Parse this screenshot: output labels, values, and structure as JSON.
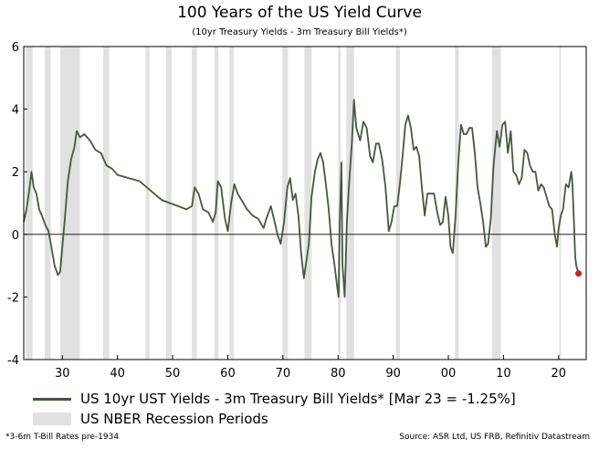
{
  "chart_data": {
    "type": "line",
    "title": "100 Years of the US Yield Curve",
    "subtitle": "(10yr Treasury Yields - 3m Treasury Bill Yields*)",
    "xlabel": "",
    "ylabel": "",
    "xlim": [
      1923,
      2025
    ],
    "ylim": [
      -4,
      6
    ],
    "yticks": [
      6,
      4,
      2,
      0,
      -2,
      -4
    ],
    "xticks": [
      {
        "value": 1930,
        "label": "30"
      },
      {
        "value": 1940,
        "label": "40"
      },
      {
        "value": 1950,
        "label": "50"
      },
      {
        "value": 1960,
        "label": "60"
      },
      {
        "value": 1970,
        "label": "70"
      },
      {
        "value": 1980,
        "label": "80"
      },
      {
        "value": 1990,
        "label": "90"
      },
      {
        "value": 2000,
        "label": "00"
      },
      {
        "value": 2010,
        "label": "10"
      },
      {
        "value": 2020,
        "label": "20"
      }
    ],
    "recessions": [
      [
        1923.4,
        1924.6
      ],
      [
        1926.8,
        1927.9
      ],
      [
        1929.6,
        1933.2
      ],
      [
        1937.4,
        1938.5
      ],
      [
        1945.1,
        1945.8
      ],
      [
        1948.8,
        1949.8
      ],
      [
        1953.5,
        1954.4
      ],
      [
        1957.6,
        1958.3
      ],
      [
        1960.3,
        1961.1
      ],
      [
        1969.9,
        1970.9
      ],
      [
        1973.9,
        1975.2
      ],
      [
        1980.0,
        1980.5
      ],
      [
        1981.5,
        1982.9
      ],
      [
        1990.5,
        1991.2
      ],
      [
        2001.2,
        2001.9
      ],
      [
        2007.9,
        2009.5
      ],
      [
        2020.1,
        2020.3
      ]
    ],
    "series": [
      {
        "name": "US 10yr UST Yields - 3m Treasury Bill Yields* [Mar 23 = -1.25%]",
        "color": "#475641",
        "points": [
          [
            1923.0,
            0.4
          ],
          [
            1923.5,
            0.8
          ],
          [
            1924.0,
            1.4
          ],
          [
            1924.4,
            2.0
          ],
          [
            1924.8,
            1.5
          ],
          [
            1925.3,
            1.3
          ],
          [
            1925.8,
            0.8
          ],
          [
            1926.3,
            0.6
          ],
          [
            1926.9,
            0.3
          ],
          [
            1927.5,
            0.1
          ],
          [
            1928.0,
            -0.4
          ],
          [
            1928.6,
            -1.0
          ],
          [
            1929.2,
            -1.3
          ],
          [
            1929.6,
            -1.2
          ],
          [
            1930.0,
            -0.4
          ],
          [
            1930.5,
            0.6
          ],
          [
            1931.0,
            1.7
          ],
          [
            1931.6,
            2.4
          ],
          [
            1932.2,
            2.8
          ],
          [
            1932.6,
            3.3
          ],
          [
            1933.2,
            3.1
          ],
          [
            1934.0,
            3.2
          ],
          [
            1935.0,
            3.0
          ],
          [
            1936.0,
            2.7
          ],
          [
            1937.0,
            2.6
          ],
          [
            1938.0,
            2.2
          ],
          [
            1939.0,
            2.1
          ],
          [
            1940.0,
            1.9
          ],
          [
            1942.0,
            1.8
          ],
          [
            1944.0,
            1.7
          ],
          [
            1946.0,
            1.4
          ],
          [
            1948.0,
            1.1
          ],
          [
            1949.5,
            1.0
          ],
          [
            1951.0,
            0.9
          ],
          [
            1952.5,
            0.8
          ],
          [
            1953.5,
            0.9
          ],
          [
            1954.0,
            1.5
          ],
          [
            1954.7,
            1.3
          ],
          [
            1955.5,
            0.8
          ],
          [
            1956.5,
            0.7
          ],
          [
            1957.3,
            0.4
          ],
          [
            1957.8,
            0.7
          ],
          [
            1958.2,
            1.7
          ],
          [
            1958.8,
            1.5
          ],
          [
            1959.5,
            0.5
          ],
          [
            1960.0,
            0.1
          ],
          [
            1960.6,
            1.0
          ],
          [
            1961.2,
            1.6
          ],
          [
            1961.8,
            1.3
          ],
          [
            1962.5,
            1.1
          ],
          [
            1963.5,
            0.8
          ],
          [
            1964.5,
            0.6
          ],
          [
            1965.5,
            0.5
          ],
          [
            1966.5,
            0.2
          ],
          [
            1967.0,
            0.5
          ],
          [
            1967.8,
            0.9
          ],
          [
            1968.5,
            0.4
          ],
          [
            1969.0,
            0.0
          ],
          [
            1969.6,
            -0.3
          ],
          [
            1970.2,
            0.4
          ],
          [
            1970.8,
            1.5
          ],
          [
            1971.3,
            1.8
          ],
          [
            1971.8,
            1.1
          ],
          [
            1972.3,
            1.3
          ],
          [
            1972.8,
            0.6
          ],
          [
            1973.3,
            -0.6
          ],
          [
            1973.8,
            -1.4
          ],
          [
            1974.3,
            -0.8
          ],
          [
            1974.7,
            -0.3
          ],
          [
            1975.2,
            1.2
          ],
          [
            1975.8,
            2.0
          ],
          [
            1976.3,
            2.4
          ],
          [
            1976.8,
            2.6
          ],
          [
            1977.3,
            2.3
          ],
          [
            1977.8,
            1.6
          ],
          [
            1978.3,
            0.8
          ],
          [
            1978.8,
            -0.3
          ],
          [
            1979.3,
            -0.9
          ],
          [
            1979.8,
            -1.6
          ],
          [
            1980.1,
            -2.0
          ],
          [
            1980.3,
            0.3
          ],
          [
            1980.6,
            2.3
          ],
          [
            1980.8,
            -1.0
          ],
          [
            1981.2,
            -2.0
          ],
          [
            1981.6,
            0.4
          ],
          [
            1982.0,
            1.6
          ],
          [
            1982.5,
            2.9
          ],
          [
            1982.9,
            4.3
          ],
          [
            1983.3,
            3.4
          ],
          [
            1984.0,
            3.0
          ],
          [
            1984.6,
            3.6
          ],
          [
            1985.2,
            3.4
          ],
          [
            1985.8,
            2.5
          ],
          [
            1986.3,
            2.3
          ],
          [
            1986.9,
            2.9
          ],
          [
            1987.4,
            2.9
          ],
          [
            1988.0,
            2.4
          ],
          [
            1988.6,
            1.5
          ],
          [
            1989.2,
            0.1
          ],
          [
            1989.7,
            0.4
          ],
          [
            1990.2,
            0.9
          ],
          [
            1990.7,
            0.9
          ],
          [
            1991.2,
            1.6
          ],
          [
            1991.7,
            2.5
          ],
          [
            1992.2,
            3.5
          ],
          [
            1992.7,
            3.8
          ],
          [
            1993.2,
            3.4
          ],
          [
            1993.7,
            2.7
          ],
          [
            1994.2,
            2.8
          ],
          [
            1994.7,
            2.5
          ],
          [
            1995.2,
            1.5
          ],
          [
            1995.7,
            0.6
          ],
          [
            1996.2,
            1.3
          ],
          [
            1996.8,
            1.3
          ],
          [
            1997.4,
            1.3
          ],
          [
            1998.0,
            0.7
          ],
          [
            1998.5,
            0.3
          ],
          [
            1999.0,
            0.4
          ],
          [
            1999.5,
            1.2
          ],
          [
            2000.0,
            0.6
          ],
          [
            2000.4,
            -0.4
          ],
          [
            2000.8,
            -0.6
          ],
          [
            2001.3,
            0.6
          ],
          [
            2001.8,
            2.3
          ],
          [
            2002.3,
            3.5
          ],
          [
            2002.8,
            3.2
          ],
          [
            2003.3,
            3.2
          ],
          [
            2003.8,
            3.4
          ],
          [
            2004.3,
            3.4
          ],
          [
            2004.8,
            2.6
          ],
          [
            2005.3,
            1.5
          ],
          [
            2005.8,
            1.0
          ],
          [
            2006.3,
            0.4
          ],
          [
            2006.8,
            -0.4
          ],
          [
            2007.2,
            -0.3
          ],
          [
            2007.7,
            0.5
          ],
          [
            2008.2,
            2.2
          ],
          [
            2008.8,
            3.3
          ],
          [
            2009.3,
            2.8
          ],
          [
            2009.8,
            3.5
          ],
          [
            2010.3,
            3.6
          ],
          [
            2010.8,
            2.6
          ],
          [
            2011.3,
            3.3
          ],
          [
            2011.8,
            2.0
          ],
          [
            2012.3,
            1.9
          ],
          [
            2012.8,
            1.6
          ],
          [
            2013.3,
            1.8
          ],
          [
            2013.8,
            2.7
          ],
          [
            2014.3,
            2.6
          ],
          [
            2014.8,
            2.2
          ],
          [
            2015.3,
            2.0
          ],
          [
            2015.8,
            2.0
          ],
          [
            2016.3,
            1.4
          ],
          [
            2016.8,
            1.6
          ],
          [
            2017.3,
            1.5
          ],
          [
            2017.8,
            1.2
          ],
          [
            2018.3,
            0.9
          ],
          [
            2018.8,
            0.8
          ],
          [
            2019.3,
            0.0
          ],
          [
            2019.7,
            -0.4
          ],
          [
            2020.0,
            0.2
          ],
          [
            2020.4,
            0.6
          ],
          [
            2020.8,
            0.8
          ],
          [
            2021.3,
            1.6
          ],
          [
            2021.8,
            1.5
          ],
          [
            2022.3,
            2.0
          ],
          [
            2022.5,
            1.6
          ],
          [
            2022.8,
            0.3
          ],
          [
            2023.0,
            -0.7
          ],
          [
            2023.2,
            -1.0
          ],
          [
            2023.6,
            -1.25
          ]
        ]
      }
    ],
    "endpoint": {
      "x": 2023.6,
      "y": -1.25,
      "color": "#cc1f1f"
    },
    "legend": [
      {
        "kind": "line",
        "label": "US 10yr UST Yields - 3m Treasury Bill Yields* [Mar 23 = -1.25%]"
      },
      {
        "kind": "box",
        "label": "US NBER Recession Periods"
      }
    ],
    "footnote": "*3-6m T-Bill Rates pre-1934",
    "source": "Source: ASR Ltd, US FRB, Refinitiv Datastream"
  }
}
